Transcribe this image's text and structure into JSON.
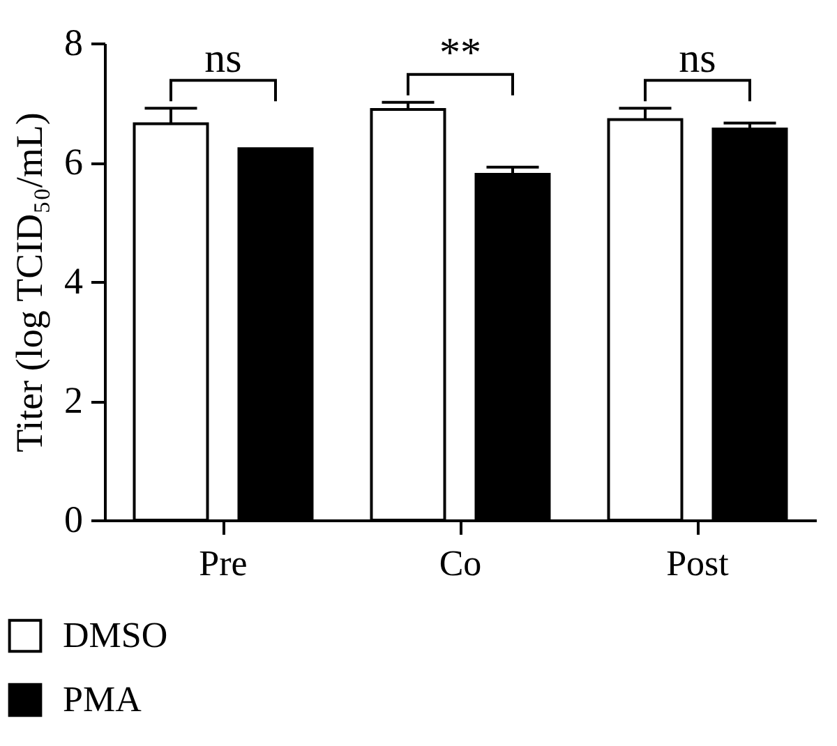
{
  "chart_data": {
    "type": "bar",
    "ylabel": "Titer (log TCID₅₀/mL)",
    "categories": [
      "Pre",
      "Co",
      "Post"
    ],
    "series": [
      {
        "name": "DMSO",
        "color": "#ffffff",
        "values": [
          6.65,
          6.89,
          6.72
        ],
        "errors": [
          0.26,
          0.12,
          0.19
        ]
      },
      {
        "name": "PMA",
        "color": "#000000",
        "values": [
          6.23,
          5.8,
          6.56
        ],
        "errors": [
          null,
          0.12,
          0.1
        ]
      }
    ],
    "ylim": [
      0,
      8
    ],
    "yticks": [
      0,
      2,
      4,
      6,
      8
    ],
    "grid": false,
    "legend": "bottom left",
    "annotations": [
      "ns",
      "**",
      "ns"
    ]
  }
}
